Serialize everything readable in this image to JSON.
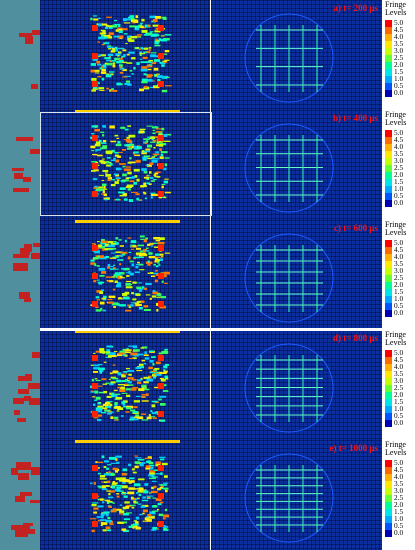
{
  "panels": [
    {
      "label": "a) t= 200 μs"
    },
    {
      "label": "b) t= 400 μs"
    },
    {
      "label": "c) t= 600 μs"
    },
    {
      "label": "d) t= 800 μs"
    },
    {
      "label": "e) t= 1000 μs"
    }
  ],
  "legend": {
    "title_line1": "Fringe",
    "title_line2": "Levels",
    "ticks": [
      "5.0",
      "4.5",
      "4.0",
      "3.5",
      "3.0",
      "2.5",
      "2.0",
      "1.5",
      "1.0",
      "0.5",
      "0.0"
    ],
    "colors": [
      "#ff0000",
      "#ff6a00",
      "#ffb000",
      "#ffe800",
      "#c8ff00",
      "#66ff33",
      "#00ff99",
      "#00e6e6",
      "#00aaff",
      "#0055ff",
      "#0000b0"
    ]
  },
  "colors": {
    "background_blue": "#0b2f9e",
    "side_panel": "#4f8f9e",
    "crack_red": "#c42121",
    "label_red": "#ff1010"
  }
}
